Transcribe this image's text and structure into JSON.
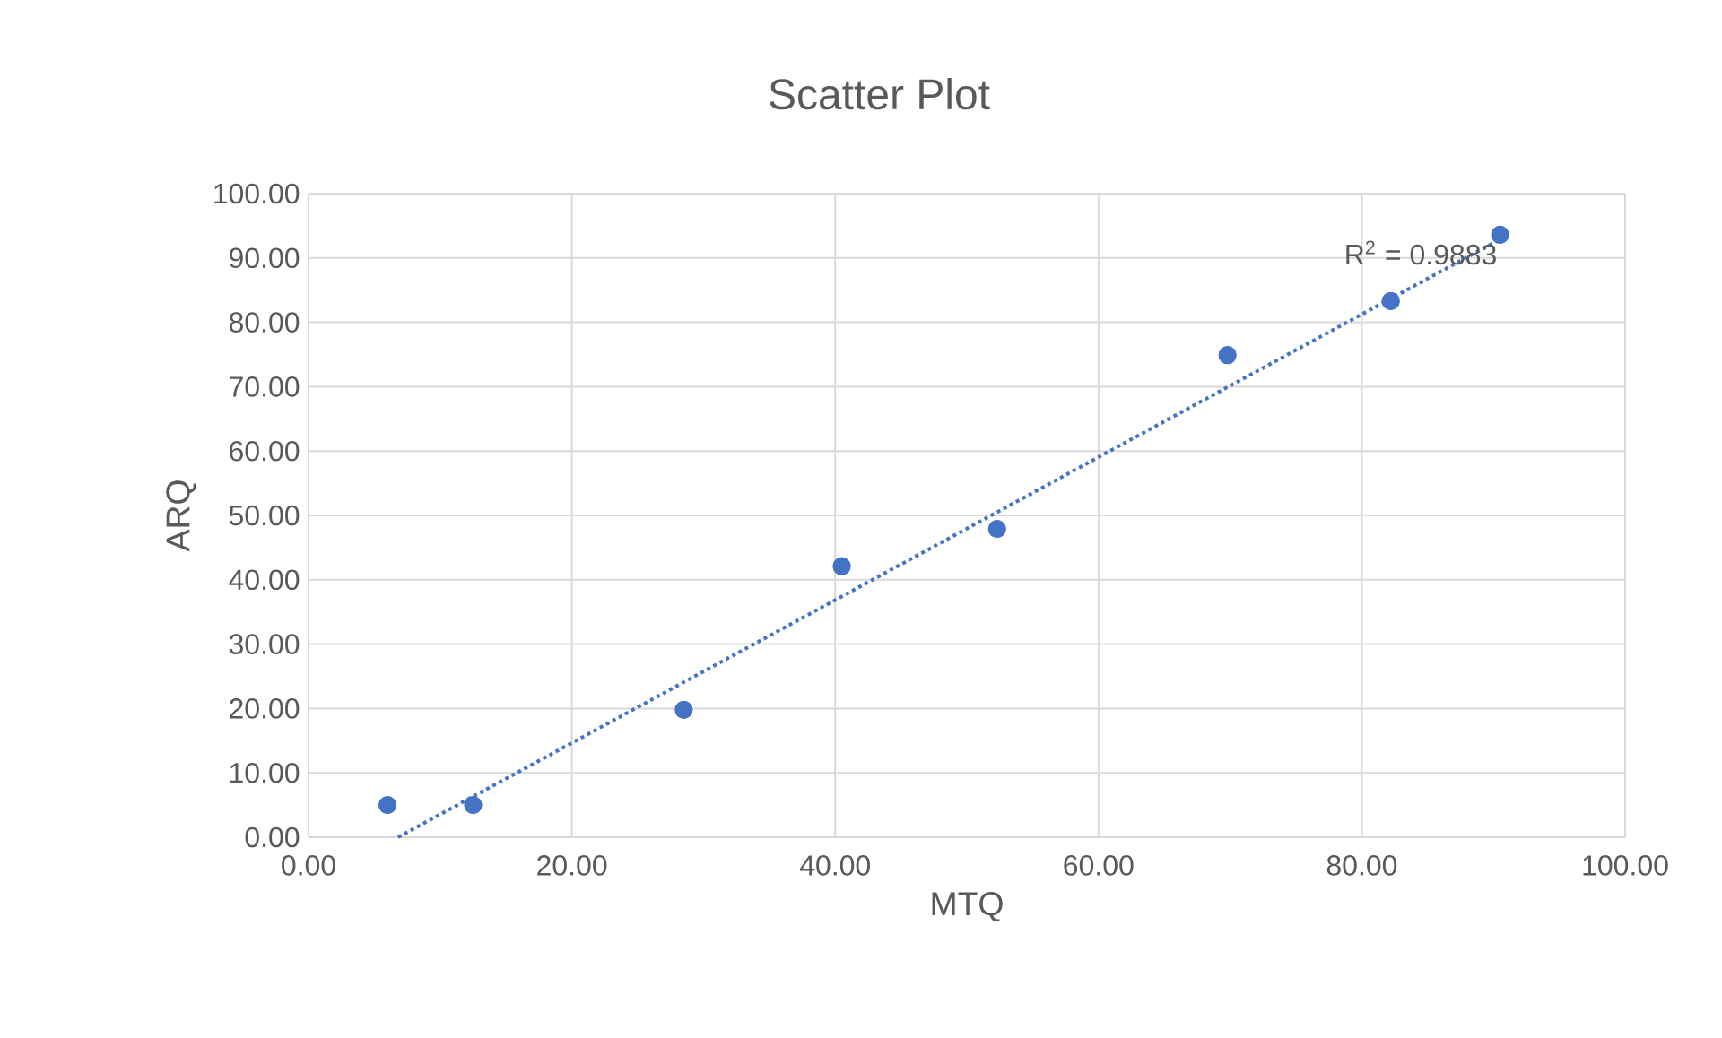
{
  "chart_data": {
    "type": "scatter",
    "title": "Scatter Plot",
    "xlabel": "MTQ",
    "ylabel": "ARQ",
    "xlim": [
      0,
      100
    ],
    "ylim": [
      0,
      100
    ],
    "xticks": [
      {
        "value": 0,
        "label": "0.00"
      },
      {
        "value": 20,
        "label": "20.00"
      },
      {
        "value": 40,
        "label": "40.00"
      },
      {
        "value": 60,
        "label": "60.00"
      },
      {
        "value": 80,
        "label": "80.00"
      },
      {
        "value": 100,
        "label": "100.00"
      }
    ],
    "yticks": [
      {
        "value": 0,
        "label": "0.00"
      },
      {
        "value": 10,
        "label": "10.00"
      },
      {
        "value": 20,
        "label": "20.00"
      },
      {
        "value": 30,
        "label": "30.00"
      },
      {
        "value": 40,
        "label": "40.00"
      },
      {
        "value": 50,
        "label": "50.00"
      },
      {
        "value": 60,
        "label": "60.00"
      },
      {
        "value": 70,
        "label": "70.00"
      },
      {
        "value": 80,
        "label": "80.00"
      },
      {
        "value": 90,
        "label": "90.00"
      },
      {
        "value": 100,
        "label": "100.00"
      }
    ],
    "grid": true,
    "series": [
      {
        "color": "#4472c4",
        "marker": "circle",
        "x": [
          6.0,
          12.5,
          28.5,
          40.5,
          52.3,
          69.8,
          82.2,
          90.5
        ],
        "values": [
          5.0,
          5.0,
          19.8,
          42.1,
          47.9,
          74.9,
          83.3,
          93.6
        ]
      },
      {
        "type": "line",
        "color": "#4472c4",
        "marker": "none",
        "line_style": "dotted",
        "x": [
          6.8,
          90.5
        ],
        "values": [
          0,
          92.9
        ]
      }
    ],
    "annotations": [
      "R$^{2}$ = 0.9883"
    ]
  }
}
